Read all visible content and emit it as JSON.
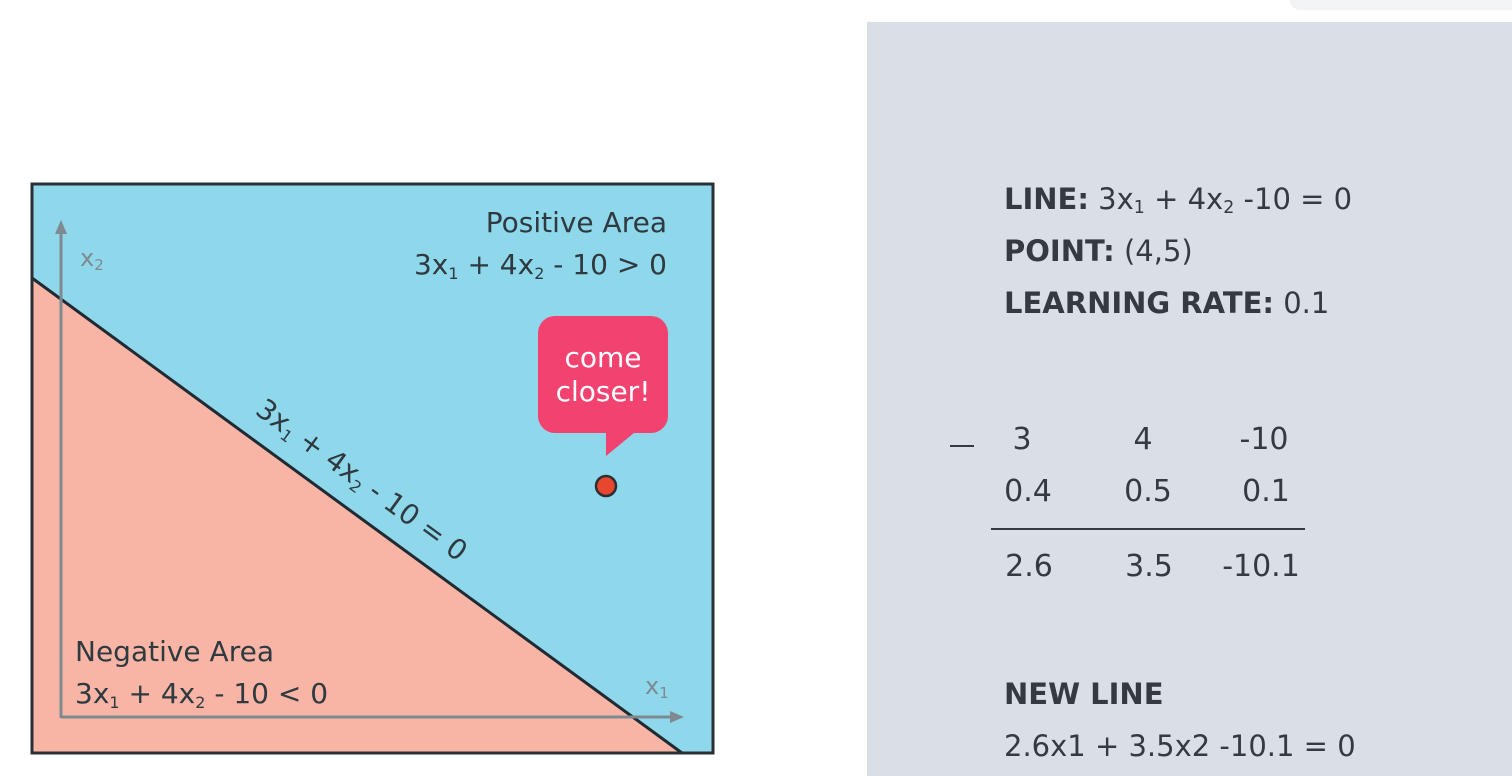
{
  "diagram": {
    "positive_area_title": "Positive Area",
    "positive_area_expr_parts": [
      "3x",
      "1",
      " + 4x",
      "2",
      " - 10 > 0"
    ],
    "negative_area_title": "Negative Area",
    "negative_area_expr_parts": [
      "3x",
      "1",
      " + 4x",
      "2",
      " - 10 < 0"
    ],
    "line_label_parts": [
      "3x",
      "1",
      " + 4x",
      "2",
      " - 10 = 0"
    ],
    "axis_x_parts": [
      "x",
      "1"
    ],
    "axis_y_parts": [
      "x",
      "2"
    ],
    "bubble_line1": "come",
    "bubble_line2": "closer!",
    "colors": {
      "positive": "#8fd7eb",
      "negative": "#f8b5a6",
      "axis": "#7f8a90",
      "line": "#1f2a33",
      "bubble": "#f2426f",
      "point": "#e8472f"
    }
  },
  "panel": {
    "line_label": "LINE:",
    "line_value_parts": [
      "3x",
      "1",
      " + 4x",
      "2",
      " -10 = 0"
    ],
    "point_label": "POINT:",
    "point_value": "(4,5)",
    "rate_label": "LEARNING RATE:",
    "rate_value": "0.1",
    "subtraction": {
      "operator": "−",
      "row1": [
        "3",
        "4",
        "-10"
      ],
      "row2": [
        "0.4",
        "0.5",
        "0.1"
      ],
      "result": [
        "2.6",
        "3.5",
        "-10.1"
      ]
    },
    "new_line_label": "NEW LINE",
    "new_line_value": "2.6x1 + 3.5x2 -10.1 = 0"
  }
}
